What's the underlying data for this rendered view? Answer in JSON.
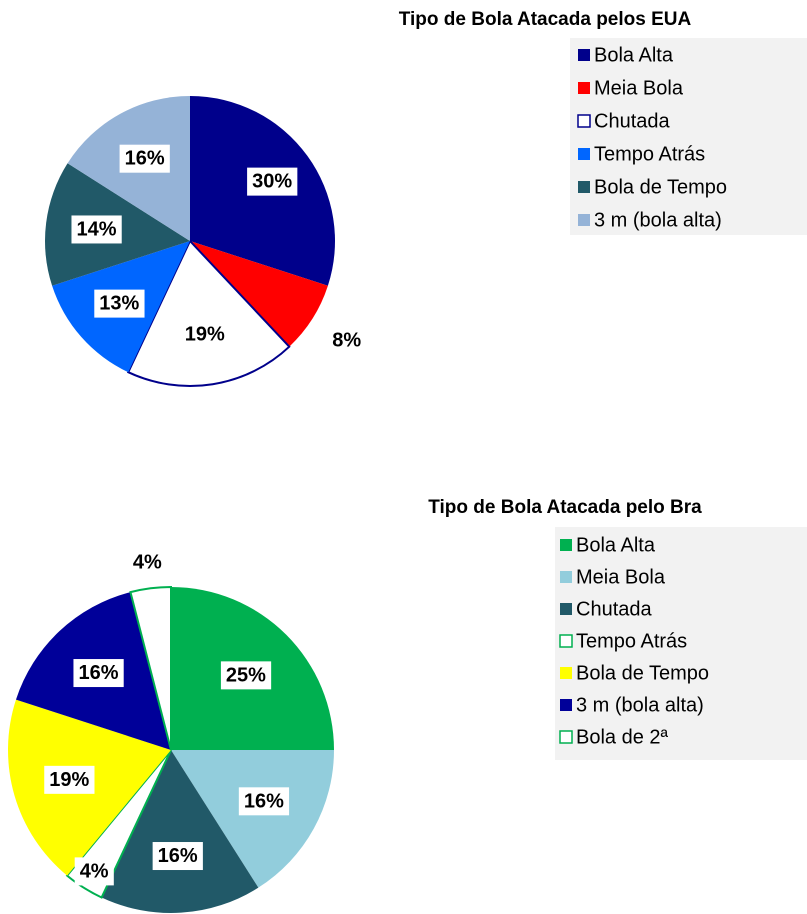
{
  "chart_data": [
    {
      "type": "pie",
      "title": "Tipo de Bola Atacada pelos EUA",
      "categories": [
        "Bola Alta",
        "Meia Bola",
        "Chutada",
        "Tempo Atrás",
        "Bola de Tempo",
        "3 m (bola alta)"
      ],
      "values": [
        30,
        8,
        19,
        13,
        14,
        16
      ],
      "value_labels": [
        "30%",
        "8%",
        "19%",
        "13%",
        "14%",
        "16%"
      ],
      "colors": [
        "#00008b",
        "#ff0000",
        "#ffffff",
        "#0066ff",
        "#215968",
        "#95b3d7"
      ],
      "edgecolor": "#00008b",
      "legend": "right"
    },
    {
      "type": "pie",
      "title": "Tipo de Bola Atacada pelo Bra",
      "categories": [
        "Bola Alta",
        "Meia Bola",
        "Chutada",
        "Tempo Atrás",
        "Bola de Tempo",
        "3 m (bola alta)",
        "Bola de 2ª"
      ],
      "values": [
        25,
        16,
        16,
        4,
        19,
        16,
        4
      ],
      "value_labels": [
        "25%",
        "16%",
        "16%",
        "4%",
        "19%",
        "16%",
        "4%"
      ],
      "colors": [
        "#00b050",
        "#92cddc",
        "#215968",
        "#ffffff",
        "#ffff00",
        "#000099",
        "#ffffff"
      ],
      "edgecolor": "#00b050",
      "legend": "right"
    }
  ]
}
